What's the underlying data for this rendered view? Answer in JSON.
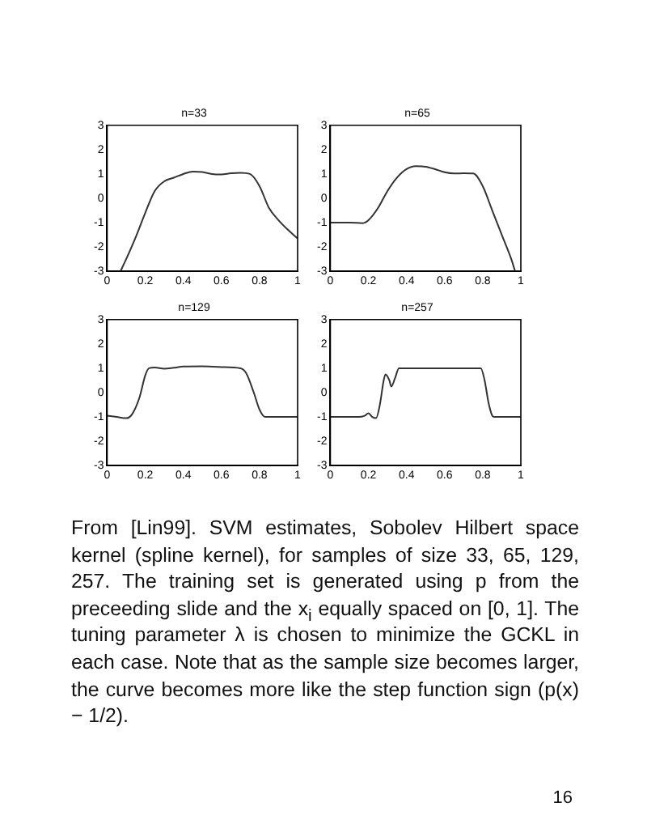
{
  "chart_data": [
    {
      "type": "line",
      "title": "n=33",
      "color": "#333333",
      "marker": "none",
      "line_style": "solid",
      "xlim": [
        0,
        1
      ],
      "ylim": [
        -3,
        3
      ],
      "xticks": [
        0,
        0.2,
        0.4,
        0.6,
        0.8,
        1
      ],
      "yticks": [
        -3,
        -2,
        -1,
        0,
        1,
        2,
        3
      ],
      "x": [
        0.07,
        0.1,
        0.15,
        0.2,
        0.25,
        0.3,
        0.35,
        0.4,
        0.45,
        0.5,
        0.55,
        0.6,
        0.65,
        0.7,
        0.75,
        0.8,
        0.85,
        0.9,
        0.95,
        1
      ],
      "values": [
        -3,
        -2.5,
        -1.6,
        -0.6,
        0.3,
        0.7,
        0.85,
        1.0,
        1.1,
        1.08,
        1.0,
        0.98,
        1.03,
        1.05,
        1.0,
        0.5,
        -0.4,
        -0.9,
        -1.3,
        -1.65
      ]
    },
    {
      "type": "line",
      "title": "n=65",
      "color": "#333333",
      "marker": "none",
      "line_style": "solid",
      "xlim": [
        0,
        1
      ],
      "ylim": [
        -3,
        3
      ],
      "xticks": [
        0,
        0.2,
        0.4,
        0.6,
        0.8,
        1
      ],
      "yticks": [
        -3,
        -2,
        -1,
        0,
        1,
        2,
        3
      ],
      "x": [
        0,
        0.1,
        0.17,
        0.2,
        0.25,
        0.3,
        0.35,
        0.4,
        0.45,
        0.5,
        0.55,
        0.6,
        0.65,
        0.7,
        0.75,
        0.8,
        0.85,
        0.9,
        0.95,
        0.97
      ],
      "values": [
        -1,
        -1,
        -1.02,
        -0.9,
        -0.4,
        0.3,
        0.85,
        1.2,
        1.32,
        1.3,
        1.2,
        1.07,
        1.02,
        1.03,
        1.02,
        0.5,
        -0.5,
        -1.5,
        -2.5,
        -3
      ]
    },
    {
      "type": "line",
      "title": "n=129",
      "color": "#333333",
      "marker": "none",
      "line_style": "solid",
      "xlim": [
        0,
        1
      ],
      "ylim": [
        -3,
        3
      ],
      "xticks": [
        0,
        0.2,
        0.4,
        0.6,
        0.8,
        1
      ],
      "yticks": [
        -3,
        -2,
        -1,
        0,
        1,
        2,
        3
      ],
      "x": [
        0,
        0.05,
        0.1,
        0.13,
        0.17,
        0.2,
        0.22,
        0.25,
        0.3,
        0.35,
        0.4,
        0.5,
        0.6,
        0.7,
        0.73,
        0.77,
        0.8,
        0.83,
        0.87,
        1
      ],
      "values": [
        -0.95,
        -1.0,
        -1.05,
        -0.9,
        -0.2,
        0.7,
        1.0,
        1.03,
        0.98,
        1.02,
        1.07,
        1.08,
        1.05,
        1.0,
        0.8,
        0,
        -0.7,
        -1.0,
        -1.0,
        -1.0
      ]
    },
    {
      "type": "line",
      "title": "n=257",
      "color": "#333333",
      "marker": "none",
      "line_style": "solid",
      "xlim": [
        0,
        1
      ],
      "ylim": [
        -3,
        3
      ],
      "xticks": [
        0,
        0.2,
        0.4,
        0.6,
        0.8,
        1
      ],
      "yticks": [
        -3,
        -2,
        -1,
        0,
        1,
        2,
        3
      ],
      "x": [
        0,
        0.15,
        0.18,
        0.2,
        0.22,
        0.24,
        0.26,
        0.28,
        0.29,
        0.31,
        0.32,
        0.34,
        0.36,
        0.4,
        0.79,
        0.81,
        0.83,
        0.85,
        0.86,
        1
      ],
      "values": [
        -1,
        -1,
        -0.95,
        -0.85,
        -1.0,
        -1.05,
        -0.5,
        0.5,
        0.75,
        0.5,
        0.25,
        0.6,
        1.0,
        1.0,
        1.0,
        0.5,
        -0.4,
        -0.95,
        -1,
        -1
      ],
      "annotations": [
        "From [Lin99]. SVM estimates, Sobolev Hilbert space kernel (spline kernel), for samples of size 33, 65, 129, 257. The training set is generated using p from the preceeding slide and the x$_{i}$ equally spaced on [0, 1]. The tuning parameter λ is chosen to minimize the GCKL in each case. Note that as the sample size becomes larger, the curve becomes more like the step function sign (p(x) − 1/2).",
        "16"
      ]
    }
  ]
}
